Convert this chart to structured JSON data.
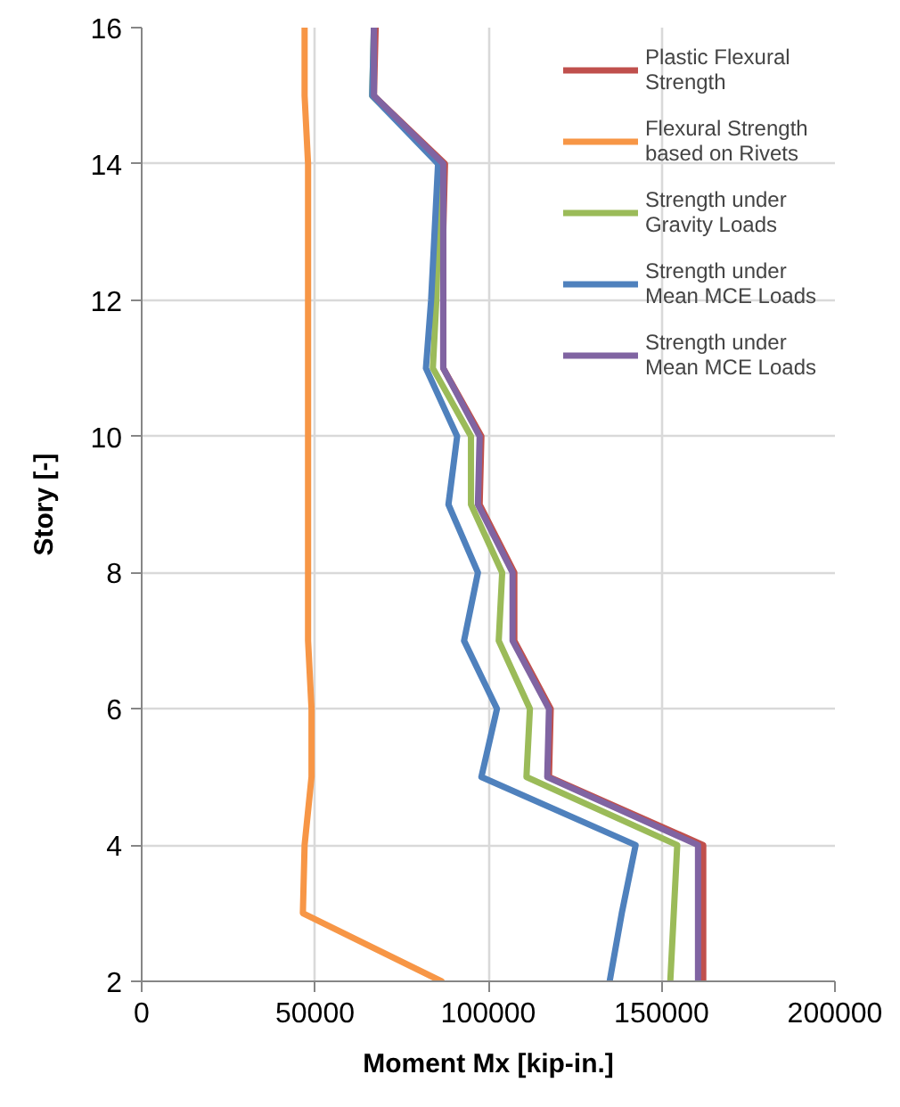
{
  "chart_data": {
    "type": "line",
    "xlabel": "Moment Mx [kip-in.]",
    "ylabel": "Story [-]",
    "xlim": [
      0,
      200000
    ],
    "xticks": [
      0,
      50000,
      100000,
      150000,
      200000
    ],
    "ylim": [
      2,
      16
    ],
    "yticks": [
      2,
      4,
      6,
      8,
      10,
      12,
      14,
      16
    ],
    "grid": true,
    "legend": "top right",
    "marker": "none",
    "line_style": "solid",
    "series": [
      {
        "name": "Plastic Flexural Strength",
        "color": "#c0504d",
        "x": [
          162000,
          162000,
          162000,
          117500,
          118000,
          107500,
          107500,
          97500,
          98000,
          87000,
          87000,
          87000,
          87500,
          67000,
          67500
        ],
        "values": [
          2,
          3,
          4,
          5,
          6,
          7,
          8,
          9,
          10,
          11,
          12,
          13,
          14,
          15,
          16
        ]
      },
      {
        "name": "Flexural Strength based on Rivets",
        "color": "#f79646",
        "x": [
          86500,
          46500,
          47000,
          49000,
          49000,
          48000,
          48000,
          48000,
          48000,
          48000,
          48000,
          48000,
          48000,
          47000,
          47000
        ],
        "values": [
          2,
          3,
          4,
          5,
          6,
          7,
          8,
          9,
          10,
          11,
          12,
          13,
          14,
          15,
          16
        ]
      },
      {
        "name": "Strength under Gravity Loads",
        "color": "#9bbb59",
        "x": [
          152500,
          153500,
          154500,
          111000,
          112000,
          103000,
          104000,
          95000,
          95000,
          84000,
          85000,
          85500,
          86500,
          66500,
          67000
        ],
        "values": [
          2,
          3,
          4,
          5,
          6,
          7,
          8,
          9,
          10,
          11,
          12,
          13,
          14,
          15,
          16
        ]
      },
      {
        "name": "Strength under Mean MCE Loads",
        "color": "#4f81bd",
        "x": [
          135000,
          138500,
          142500,
          98000,
          102500,
          93000,
          97000,
          88500,
          91000,
          82000,
          83500,
          84500,
          85500,
          66500,
          67000
        ],
        "values": [
          2,
          3,
          4,
          5,
          6,
          7,
          8,
          9,
          10,
          11,
          12,
          13,
          14,
          15,
          16
        ]
      },
      {
        "name": "Strength under Mean MCE Loads",
        "color": "#8064a2",
        "x": [
          160500,
          160500,
          160500,
          117000,
          117500,
          107000,
          107000,
          97000,
          97500,
          87000,
          87000,
          87000,
          87000,
          67000,
          67000
        ],
        "values": [
          2,
          3,
          4,
          5,
          6,
          7,
          8,
          9,
          10,
          11,
          12,
          13,
          14,
          15,
          16
        ]
      }
    ]
  }
}
